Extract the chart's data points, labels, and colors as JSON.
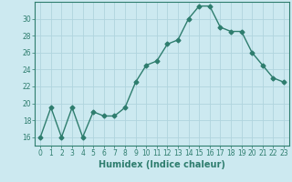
{
  "x": [
    0,
    1,
    2,
    3,
    4,
    5,
    6,
    7,
    8,
    9,
    10,
    11,
    12,
    13,
    14,
    15,
    16,
    17,
    18,
    19,
    20,
    21,
    22,
    23
  ],
  "y": [
    16,
    19.5,
    16,
    19.5,
    16,
    19,
    18.5,
    18.5,
    19.5,
    22.5,
    24.5,
    25,
    27,
    27.5,
    30,
    31.5,
    31.5,
    29,
    28.5,
    28.5,
    26,
    24.5,
    23,
    22.5
  ],
  "line_color": "#2e7d6e",
  "marker": "D",
  "marker_size": 2.5,
  "bg_color": "#cce9f0",
  "grid_color": "#b0d4de",
  "xlabel": "Humidex (Indice chaleur)",
  "ylim": [
    15,
    32
  ],
  "xlim": [
    -0.5,
    23.5
  ],
  "yticks": [
    16,
    18,
    20,
    22,
    24,
    26,
    28,
    30
  ],
  "xticks": [
    0,
    1,
    2,
    3,
    4,
    5,
    6,
    7,
    8,
    9,
    10,
    11,
    12,
    13,
    14,
    15,
    16,
    17,
    18,
    19,
    20,
    21,
    22,
    23
  ],
  "tick_fontsize": 5.5,
  "label_fontsize": 7,
  "tick_color": "#2e7d6e",
  "spine_color": "#2e7d6e",
  "line_width": 1.0
}
